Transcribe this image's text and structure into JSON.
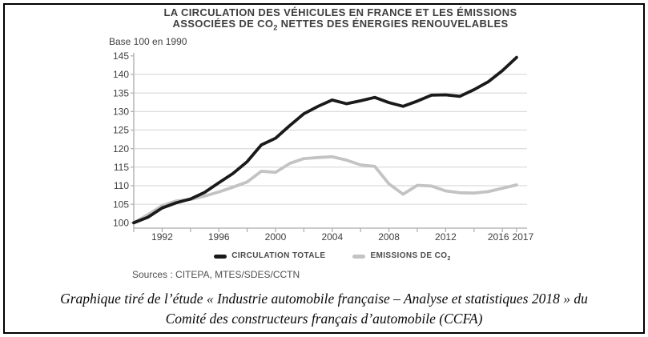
{
  "chart": {
    "title_line1": "LA CIRCULATION DES VÉHICULES EN FRANCE ET LES ÉMISSIONS",
    "title_line2_pre": "ASSOCIÉES DE CO",
    "title_line2_sub": "2",
    "title_line2_post": " NETTES DES ÉNERGIES RENOUVELABLES",
    "base_label": "Base 100 en 1990",
    "sources": "Sources : CITEPA, MTES/SDES/CCTN",
    "legend": [
      {
        "label_pre": "CIRCULATION TOTALE",
        "label_sub": "",
        "color": "#1a1a1a"
      },
      {
        "label_pre": "EMISSIONS DE CO",
        "label_sub": "2",
        "color": "#c3c3c3"
      }
    ]
  },
  "caption": {
    "line1": "Graphique tiré de l’étude « Industrie automobile française – Analyse et statistiques 2018 » du",
    "line2": "Comité des constructeurs français d’automobile (CCFA)"
  },
  "chart_data": {
    "type": "line",
    "title": "LA CIRCULATION DES VÉHICULES EN FRANCE ET LES ÉMISSIONS ASSOCIÉES DE CO2 NETTES DES ÉNERGIES RENOUVELABLES",
    "base_note": "Base 100 en 1990",
    "x": [
      1990,
      1991,
      1992,
      1993,
      1994,
      1995,
      1996,
      1997,
      1998,
      1999,
      2000,
      2001,
      2002,
      2003,
      2004,
      2005,
      2006,
      2007,
      2008,
      2009,
      2010,
      2011,
      2012,
      2013,
      2014,
      2015,
      2016,
      2017
    ],
    "series": [
      {
        "name": "CIRCULATION TOTALE",
        "color": "#1a1a1a",
        "values": [
          100,
          101.5,
          104,
          105.4,
          106.4,
          108.2,
          110.8,
          113.3,
          116.5,
          121,
          122.8,
          126.2,
          129.4,
          131.4,
          133.1,
          132.1,
          132.9,
          133.8,
          132.4,
          131.4,
          132.8,
          134.4,
          134.5,
          134.1,
          135.9,
          138,
          141,
          144.6
        ]
      },
      {
        "name": "EMISSIONS DE CO2",
        "color": "#c3c3c3",
        "values": [
          100,
          102.2,
          104.6,
          105.9,
          106.3,
          107.2,
          108.3,
          109.6,
          111,
          113.9,
          113.6,
          116,
          117.3,
          117.6,
          117.8,
          116.9,
          115.6,
          115.2,
          110.5,
          107.7,
          110.1,
          109.9,
          108.6,
          108.1,
          108,
          108.4,
          109.3,
          110.2
        ]
      }
    ],
    "ylim": [
      100,
      145
    ],
    "ytick_step": 5,
    "yticks": [
      100,
      105,
      110,
      115,
      120,
      125,
      130,
      135,
      140,
      145
    ],
    "xtick_labels": [
      1992,
      1996,
      2000,
      2004,
      2008,
      2012,
      2016,
      2017
    ],
    "grid": true,
    "legend_position": "bottom",
    "gridline_color": "#d8d8d8",
    "axis_color": "#ababab",
    "label_color": "#3f3f3f"
  }
}
